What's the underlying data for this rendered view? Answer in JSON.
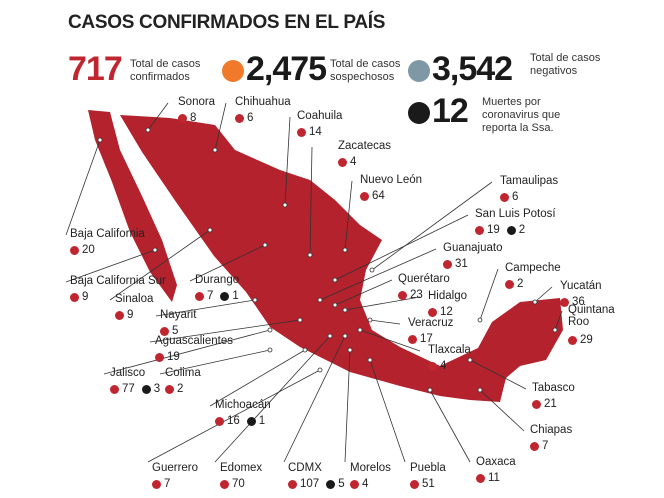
{
  "title": "CASOS CONFIRMADOS EN EL PAÍS",
  "summary": [
    {
      "value": "717",
      "label": "Total de casos confirmados",
      "color": "#c0262f",
      "dot": false
    },
    {
      "value": "2,475",
      "label": "Total de casos sospechosos",
      "color": "#f07a2a",
      "dot": true
    },
    {
      "value": "3,542",
      "label": "Total de casos negativos",
      "color": "#7f98a6",
      "dot": true
    },
    {
      "value": "12",
      "label": "Muertes por coronavirus que reporta la Ssa.",
      "color": "#1a1a1a",
      "dot": true
    }
  ],
  "map_color": "#b3222d",
  "case_dot_color": "#c0262f",
  "death_dot_color": "#1a1a1a",
  "states": [
    {
      "name": "Sonora",
      "cases": "8"
    },
    {
      "name": "Chihuahua",
      "cases": "6"
    },
    {
      "name": "Coahuila",
      "cases": "14"
    },
    {
      "name": "Zacatecas",
      "cases": "4"
    },
    {
      "name": "Nuevo León",
      "cases": "64"
    },
    {
      "name": "Tamaulipas",
      "cases": "6"
    },
    {
      "name": "San Luis Potosí",
      "cases": "19",
      "deaths": "2"
    },
    {
      "name": "Guanajuato",
      "cases": "31"
    },
    {
      "name": "Querétaro",
      "cases": "23"
    },
    {
      "name": "Hidalgo",
      "cases": "12"
    },
    {
      "name": "Veracruz",
      "cases": "17"
    },
    {
      "name": "Tlaxcala",
      "cases": "4"
    },
    {
      "name": "Campeche",
      "cases": "2"
    },
    {
      "name": "Yucatán",
      "cases": "36"
    },
    {
      "name": "Quintana Roo",
      "cases": "29"
    },
    {
      "name": "Tabasco",
      "cases": "21"
    },
    {
      "name": "Chiapas",
      "cases": "7"
    },
    {
      "name": "Oaxaca",
      "cases": "11"
    },
    {
      "name": "Puebla",
      "cases": "51"
    },
    {
      "name": "Morelos",
      "cases": "4"
    },
    {
      "name": "CDMX",
      "cases": "107",
      "deaths": "5"
    },
    {
      "name": "Edomex",
      "cases": "70"
    },
    {
      "name": "Guerrero",
      "cases": "7"
    },
    {
      "name": "Michoacán",
      "cases": "16",
      "deaths": "1"
    },
    {
      "name": "Colima",
      "cases": "2"
    },
    {
      "name": "Jalisco",
      "cases": "77",
      "deaths": "3"
    },
    {
      "name": "Aguascalientes",
      "cases": "19"
    },
    {
      "name": "Nayarit",
      "cases": "5"
    },
    {
      "name": "Sinaloa",
      "cases": "9"
    },
    {
      "name": "Durango",
      "cases": "7",
      "deaths": "1"
    },
    {
      "name": "Baja California Sur",
      "cases": "9"
    },
    {
      "name": "Baja California",
      "cases": "20"
    }
  ]
}
